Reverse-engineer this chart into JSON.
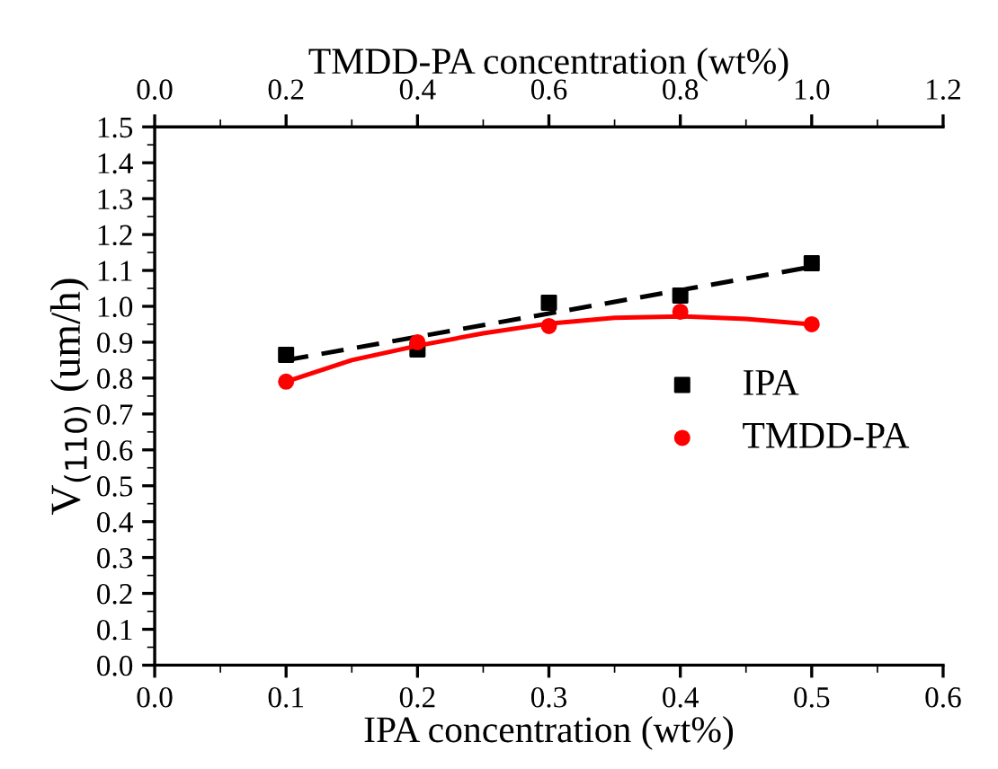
{
  "chart_data": {
    "type": "scatter",
    "xlabel": "IPA concentration (wt%)",
    "x2label": "TMDD-PA concentration (wt%)",
    "ylabel": "V$_{(110)}$ (um/h)",
    "xlim": [
      0.0,
      0.6
    ],
    "xticks": [
      {
        "value": 0,
        "label": "0.0"
      },
      0.1,
      0.2,
      0.3,
      0.4,
      0.5,
      0.6
    ],
    "x2lim": [
      0.0,
      1.2
    ],
    "x2ticks": [
      {
        "value": 0,
        "label": "0.0"
      },
      0.2,
      0.4,
      0.6,
      0.8,
      {
        "value": 1,
        "label": "1.0"
      },
      1.2
    ],
    "ylim": [
      0.0,
      1.5
    ],
    "yticks": [
      {
        "value": 0,
        "label": "0.0"
      },
      0.1,
      0.2,
      0.3,
      0.4,
      0.5,
      0.6,
      0.7,
      0.8,
      0.9,
      {
        "value": 1,
        "label": "1.0"
      },
      1.1,
      1.2,
      1.3,
      1.4,
      1.5
    ],
    "grid": false,
    "legend": "right",
    "series": [
      {
        "type": "line",
        "color": "#000000",
        "line_style": "dashed",
        "marker": "none",
        "x": [
          0.1,
          0.5
        ],
        "values": [
          0.85,
          1.11
        ]
      },
      {
        "type": "line",
        "axis": "x2",
        "color": "#ff0000",
        "line_style": "solid",
        "marker": "none",
        "x": [
          0.2,
          0.3,
          0.4,
          0.5,
          0.6,
          0.7,
          0.8,
          0.9,
          1.0
        ],
        "values": [
          0.79,
          0.85,
          0.89,
          0.925,
          0.952,
          0.968,
          0.972,
          0.965,
          0.95
        ]
      },
      {
        "name": "IPA",
        "color": "#000000",
        "marker": "square",
        "x": [
          0.1,
          0.2,
          0.3,
          0.4,
          0.5
        ],
        "values": [
          0.865,
          0.88,
          1.01,
          1.03,
          1.12
        ]
      },
      {
        "name": "TMDD-PA",
        "axis": "x2",
        "color": "#ff0000",
        "marker": "circle",
        "x": [
          0.2,
          0.4,
          0.6,
          0.8,
          1.0
        ],
        "values": [
          0.79,
          0.9,
          0.945,
          0.985,
          0.95
        ]
      }
    ]
  }
}
